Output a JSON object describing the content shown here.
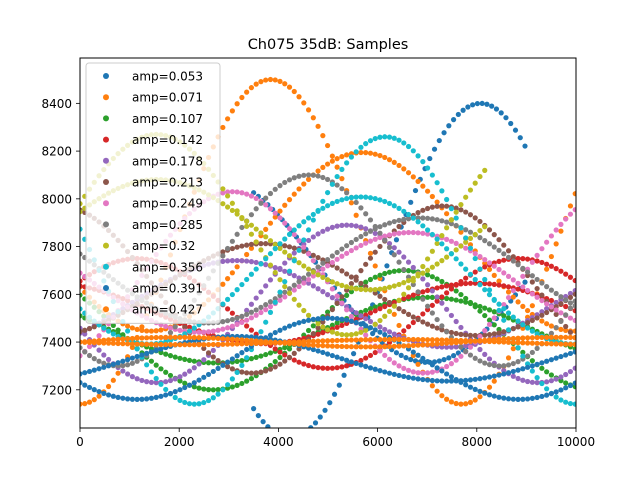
{
  "chart_data": {
    "type": "scatter",
    "title": "Ch075 35dB: Samples",
    "xlabel": "",
    "ylabel": "",
    "xlim": [
      0,
      10000
    ],
    "ylim": [
      7040,
      8590
    ],
    "xticks": [
      0,
      2000,
      4000,
      6000,
      8000,
      10000
    ],
    "yticks": [
      7200,
      7400,
      7600,
      7800,
      8000,
      8200,
      8400
    ],
    "grid": false,
    "legend_position": "top-left",
    "series": [
      {
        "name": "amp=0.053",
        "color": "#1f77b4",
        "start": 3500,
        "end": 9000,
        "base": 7700,
        "amp": 700,
        "shift": 0.2
      },
      {
        "name": "amp=0.071",
        "color": "#ff7f0e",
        "start": 0,
        "end": 10000,
        "base": 7820,
        "amp": 680,
        "shift": 0.75
      },
      {
        "name": "amp=0.107",
        "color": "#2ca02c",
        "start": 0,
        "end": 10000,
        "base": 7450,
        "amp": 250,
        "shift": 0.4
      },
      {
        "name": "amp=0.142",
        "color": "#d62728",
        "start": 0,
        "end": 10000,
        "base": 7520,
        "amp": 230,
        "shift": 0.1
      },
      {
        "name": "amp=0.178",
        "color": "#9467bd",
        "start": 0,
        "end": 10000,
        "base": 7560,
        "amp": 330,
        "shift": 0.55
      },
      {
        "name": "amp=0.213",
        "color": "#8c564b",
        "start": 0,
        "end": 10000,
        "base": 7620,
        "amp": 350,
        "shift": 0.3
      },
      {
        "name": "amp=0.249",
        "color": "#e377c2",
        "start": 0,
        "end": 10000,
        "base": 7650,
        "amp": 380,
        "shift": 0.85
      },
      {
        "name": "amp=0.285",
        "color": "#7f7f7f",
        "start": 0,
        "end": 10000,
        "base": 7700,
        "amp": 400,
        "shift": 0.65
      },
      {
        "name": "amp=0.32",
        "color": "#bcbd22",
        "start": 0,
        "end": 8200,
        "base": 7850,
        "amp": 420,
        "shift": 0.05
      },
      {
        "name": "amp=0.356",
        "color": "#17becf",
        "start": 0,
        "end": 10000,
        "base": 7700,
        "amp": 560,
        "shift": 0.45
      },
      {
        "name": "amp=0.391",
        "color": "#1f77b4",
        "start": 0,
        "end": 10000,
        "base": 7330,
        "amp": 170,
        "shift": 0.6
      },
      {
        "name": "amp=0.427",
        "color": "#ff7f0e",
        "start": 0,
        "end": 10000,
        "base": 7400,
        "amp": 20,
        "shift": 0.0
      }
    ]
  }
}
